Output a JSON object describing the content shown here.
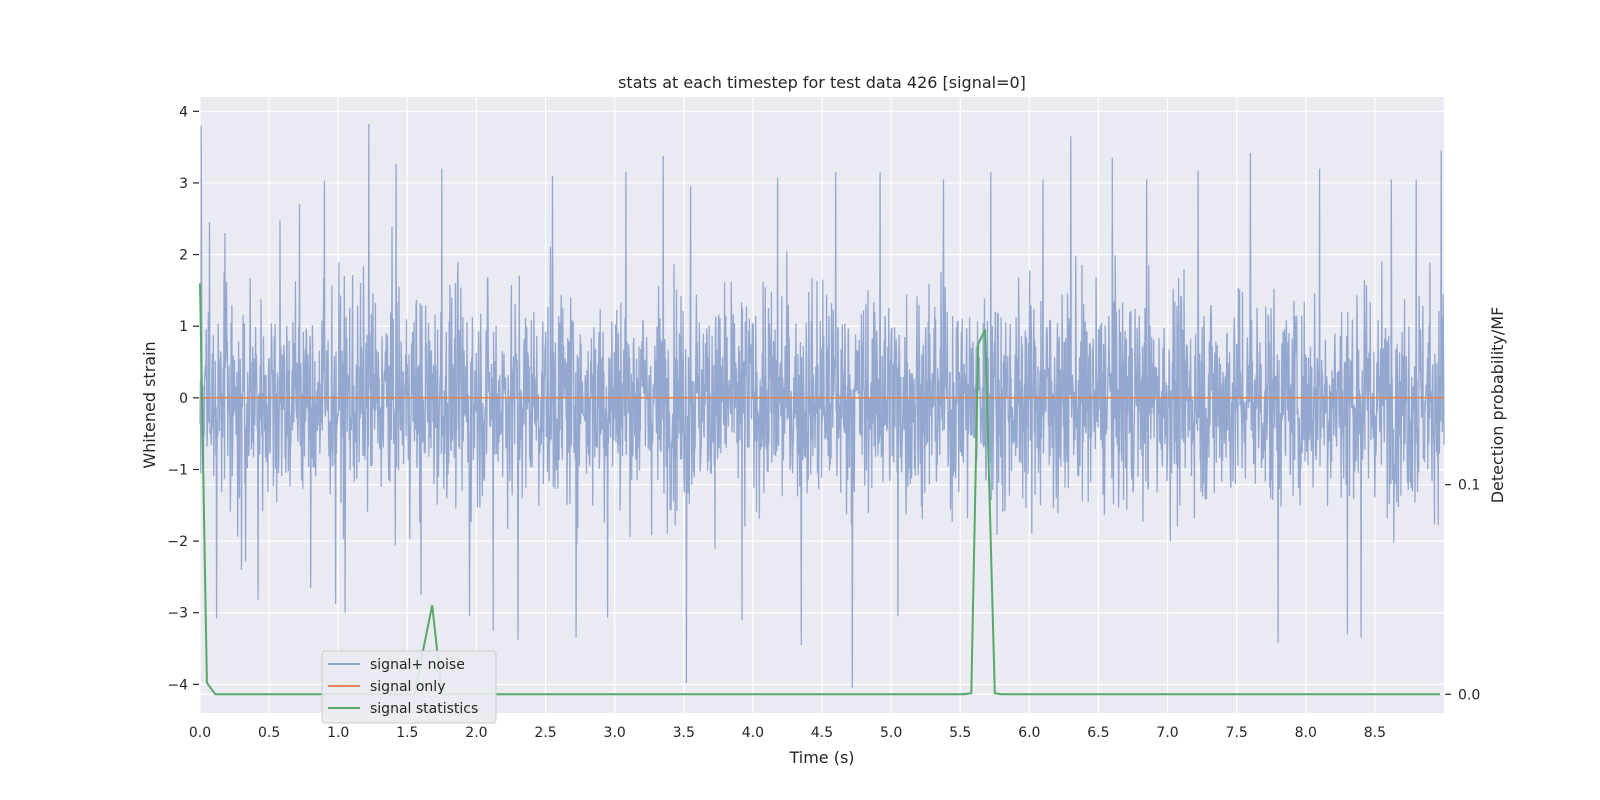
{
  "chart_data": {
    "type": "line",
    "title": "stats at each timestep for test data 426 [signal=0]",
    "xlabel": "Time (s)",
    "ylabel": "Whitened strain",
    "y2label": "Detection probability/MF",
    "xlim": [
      0,
      9.0
    ],
    "ylim": [
      -4.4,
      4.2
    ],
    "y2lim": [
      -0.0089,
      0.2849
    ],
    "xticks": [
      "0.0",
      "0.5",
      "1.0",
      "1.5",
      "2.0",
      "2.5",
      "3.0",
      "3.5",
      "4.0",
      "4.5",
      "5.0",
      "5.5",
      "6.0",
      "6.5",
      "7.0",
      "7.5",
      "8.0",
      "8.5"
    ],
    "yticks": [
      "4",
      "3",
      "2",
      "1",
      "0",
      "−1",
      "−2",
      "−3",
      "−4"
    ],
    "y2ticks": [
      "0.1",
      "0.0"
    ],
    "grid": true,
    "legend_position": "lower-left",
    "colors": {
      "noise": "#8fa4cc",
      "signal": "#dd8452",
      "stats": "#55a868",
      "plot_bg": "#eaeaf2",
      "grid": "#ffffff"
    },
    "series": [
      {
        "name": "signal+ noise",
        "axis": "left",
        "description_of_values": "noise samples",
        "noise_spikes": [
          [
            0.07,
            2.45
          ],
          [
            0.12,
            -3.08
          ],
          [
            0.18,
            2.3
          ],
          [
            0.3,
            -2.4
          ],
          [
            0.42,
            -2.82
          ],
          [
            0.58,
            2.48
          ],
          [
            0.72,
            2.7
          ],
          [
            0.8,
            -2.65
          ],
          [
            0.9,
            3.03
          ],
          [
            0.98,
            -2.88
          ],
          [
            1.05,
            -3.0
          ],
          [
            1.22,
            3.82
          ],
          [
            1.42,
            3.27
          ],
          [
            1.6,
            -2.75
          ],
          [
            1.75,
            3.2
          ],
          [
            1.95,
            -3.05
          ],
          [
            2.12,
            -3.25
          ],
          [
            2.3,
            -3.38
          ],
          [
            2.55,
            3.1
          ],
          [
            2.72,
            -3.35
          ],
          [
            2.95,
            -3.07
          ],
          [
            3.08,
            3.15
          ],
          [
            3.35,
            3.38
          ],
          [
            3.52,
            -3.98
          ],
          [
            3.55,
            2.95
          ],
          [
            3.92,
            -3.1
          ],
          [
            4.18,
            3.07
          ],
          [
            4.35,
            -3.45
          ],
          [
            4.6,
            3.15
          ],
          [
            4.72,
            -4.05
          ],
          [
            4.92,
            3.15
          ],
          [
            5.05,
            -3.05
          ],
          [
            5.38,
            3.05
          ],
          [
            5.72,
            3.15
          ],
          [
            6.1,
            3.05
          ],
          [
            6.3,
            3.65
          ],
          [
            6.6,
            3.35
          ],
          [
            6.85,
            3.05
          ],
          [
            7.22,
            3.17
          ],
          [
            7.6,
            3.42
          ],
          [
            7.8,
            -3.42
          ],
          [
            8.1,
            3.2
          ],
          [
            8.3,
            -3.3
          ],
          [
            8.4,
            -3.35
          ],
          [
            8.62,
            3.05
          ],
          [
            8.8,
            3.05
          ],
          [
            8.98,
            3.45
          ],
          [
            0.01,
            3.8
          ]
        ]
      },
      {
        "name": "signal only",
        "axis": "left",
        "x": [
          0,
          9.0
        ],
        "y": [
          0,
          0
        ]
      },
      {
        "name": "signal statistics",
        "axis": "right",
        "x": [
          0.0,
          0.05,
          0.11,
          1.55,
          1.68,
          1.75,
          1.8,
          5.52,
          5.58,
          5.63,
          5.68,
          5.75,
          5.8,
          8.97
        ],
        "y": [
          0.196,
          0.0055,
          0.0,
          0.0,
          0.0425,
          0.0,
          0.0,
          0.0,
          0.0005,
          0.167,
          0.174,
          0.0005,
          0.0,
          0.0
        ]
      }
    ]
  }
}
